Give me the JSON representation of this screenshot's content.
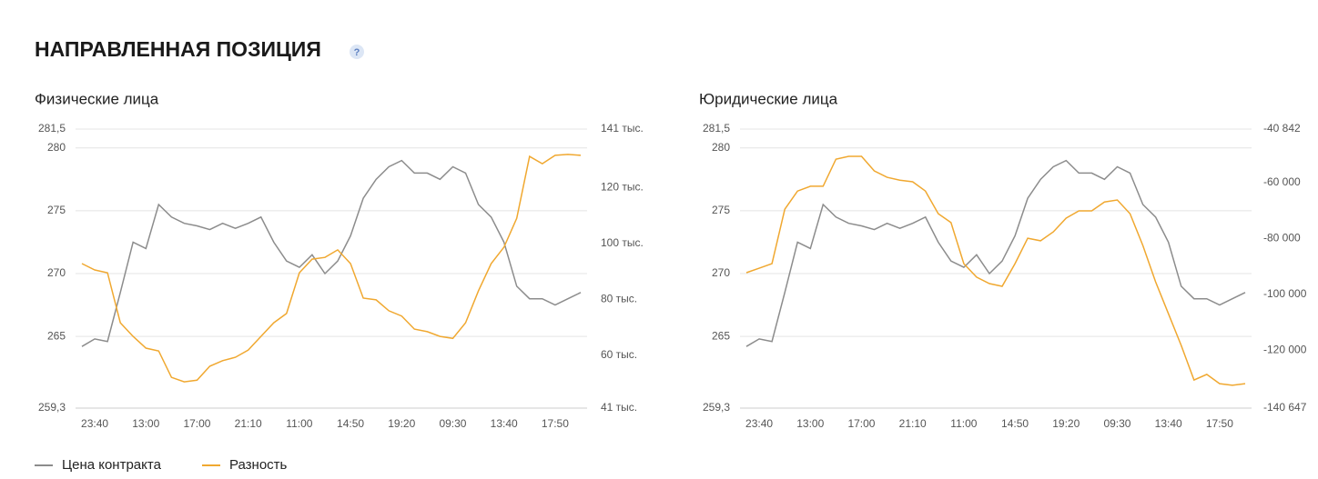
{
  "header": {
    "title": "НАПРАВЛЕННАЯ ПОЗИЦИЯ",
    "help": "?"
  },
  "legend": [
    {
      "name": "Цена контракта",
      "color": "#8c8c8c"
    },
    {
      "name": "Разность",
      "color": "#f0a830"
    }
  ],
  "chart_data": [
    {
      "type": "line",
      "title": "Физические лица",
      "categories": [
        null,
        "23:40",
        null,
        null,
        null,
        "13:00",
        null,
        null,
        null,
        "17:00",
        null,
        null,
        null,
        "21:10",
        null,
        null,
        null,
        "11:00",
        null,
        null,
        null,
        "14:50",
        null,
        null,
        null,
        "19:20",
        null,
        null,
        null,
        "09:30",
        null,
        null,
        null,
        "13:40",
        null,
        null,
        null,
        "17:50",
        null,
        null
      ],
      "ylim": [
        259.3,
        281.5
      ],
      "yticks": [
        {
          "value": 259.3,
          "label": "259,3"
        },
        265,
        270,
        275,
        280,
        {
          "value": 281.5,
          "label": "281,5"
        }
      ],
      "y2lim": [
        41000,
        141000
      ],
      "y2ticks": [
        {
          "value": 41000,
          "label": "41 тыс."
        },
        {
          "value": 60000,
          "label": "60 тыс."
        },
        {
          "value": 80000,
          "label": "80 тыс."
        },
        {
          "value": 100000,
          "label": "100 тыс."
        },
        {
          "value": 120000,
          "label": "120 тыс."
        },
        {
          "value": 141000,
          "label": "141 тыс."
        }
      ],
      "grid": true,
      "series": [
        {
          "values": [
            264.2,
            264.8,
            264.6,
            268.5,
            272.5,
            272.0,
            275.5,
            274.5,
            274.0,
            273.8,
            273.5,
            274.0,
            273.6,
            274.0,
            274.5,
            272.5,
            271.0,
            270.5,
            271.5,
            270.0,
            271.0,
            273.0,
            276.0,
            277.5,
            278.5,
            279.0,
            278.0,
            278.0,
            277.5,
            278.5,
            278.0,
            275.5,
            274.5,
            272.5,
            269.0,
            268.0,
            268.0,
            267.5,
            268.0,
            268.5
          ]
        },
        {
          "axis": "y2",
          "values": [
            92800,
            90500,
            89500,
            71600,
            66700,
            62500,
            61500,
            52000,
            50400,
            51000,
            56000,
            58000,
            59200,
            61800,
            66700,
            71600,
            74900,
            89500,
            94400,
            95000,
            97700,
            92800,
            80400,
            79800,
            75900,
            74000,
            69300,
            68400,
            66700,
            66000,
            71600,
            83000,
            92800,
            98700,
            109000,
            131200,
            128600,
            131600,
            131900,
            131600
          ]
        }
      ]
    },
    {
      "type": "line",
      "title": "Юридические лица",
      "categories": [
        null,
        "23:40",
        null,
        null,
        null,
        "13:00",
        null,
        null,
        null,
        "17:00",
        null,
        null,
        null,
        "21:10",
        null,
        null,
        null,
        "11:00",
        null,
        null,
        null,
        "14:50",
        null,
        null,
        null,
        "19:20",
        null,
        null,
        null,
        "09:30",
        null,
        null,
        null,
        "13:40",
        null,
        null,
        null,
        "17:50",
        null,
        null
      ],
      "ylim": [
        259.3,
        281.5
      ],
      "yticks": [
        {
          "value": 259.3,
          "label": "259,3"
        },
        265,
        270,
        275,
        280,
        {
          "value": 281.5,
          "label": "281,5"
        }
      ],
      "y2lim": [
        -140647,
        -40842
      ],
      "y2ticks": [
        {
          "value": -140647,
          "label": "-140 647"
        },
        {
          "value": -120000,
          "label": "-120 000"
        },
        {
          "value": -100000,
          "label": "-100 000"
        },
        {
          "value": -80000,
          "label": "-80 000"
        },
        {
          "value": -60000,
          "label": "-60 000"
        },
        {
          "value": -40842,
          "label": "-40 842"
        }
      ],
      "grid": true,
      "series": [
        {
          "values": [
            264.2,
            264.8,
            264.6,
            268.5,
            272.5,
            272.0,
            275.5,
            274.5,
            274.0,
            273.8,
            273.5,
            274.0,
            273.6,
            274.0,
            274.5,
            272.5,
            271.0,
            270.5,
            271.5,
            270.0,
            271.0,
            273.0,
            276.0,
            277.5,
            278.5,
            279.0,
            278.0,
            278.0,
            277.5,
            278.5,
            278.0,
            275.5,
            274.5,
            272.5,
            269.0,
            268.0,
            268.0,
            267.5,
            268.0,
            268.5
          ]
        },
        {
          "axis": "y2",
          "values": [
            -92200,
            -90600,
            -89000,
            -69500,
            -63000,
            -61300,
            -61300,
            -51600,
            -50600,
            -50600,
            -55800,
            -58100,
            -59100,
            -59700,
            -63000,
            -71100,
            -74300,
            -89000,
            -93800,
            -96100,
            -97100,
            -89000,
            -79900,
            -80800,
            -77600,
            -72700,
            -70100,
            -70100,
            -66900,
            -66200,
            -71100,
            -82500,
            -95500,
            -106900,
            -118200,
            -130600,
            -128600,
            -131900,
            -132500,
            -131900
          ]
        }
      ]
    }
  ]
}
